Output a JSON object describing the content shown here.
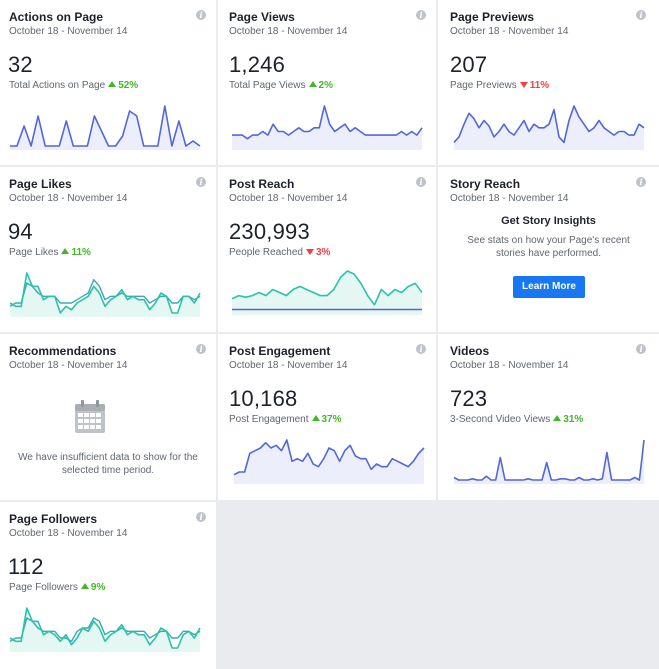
{
  "date_range": "October 18 - November 14",
  "info_glyph": "i",
  "cards": [
    {
      "title": "Actions on Page",
      "value": "32",
      "metric": "Total Actions on Page",
      "change": "52%",
      "dir": "up",
      "spark": [
        0,
        0,
        8,
        0,
        12,
        0,
        0,
        0,
        10,
        0,
        0,
        0,
        12,
        6,
        0,
        0,
        4,
        14,
        12,
        0,
        0,
        0,
        16,
        0,
        10,
        0,
        2,
        0
      ]
    },
    {
      "title": "Page Views",
      "value": "1,246",
      "metric": "Total Page Views",
      "change": "2%",
      "dir": "up",
      "spark": [
        3,
        3,
        3,
        2,
        3,
        3,
        4,
        3,
        6,
        4,
        4,
        3,
        4,
        5,
        4,
        4,
        5,
        5,
        11,
        6,
        4,
        5,
        6,
        4,
        5,
        4,
        3,
        3,
        3,
        3,
        3,
        3,
        3,
        4,
        3,
        4,
        3,
        5
      ]
    },
    {
      "title": "Page Previews",
      "value": "207",
      "metric": "Page Previews",
      "change": "11%",
      "dir": "down",
      "spark": [
        2,
        5,
        12,
        18,
        15,
        10,
        14,
        11,
        5,
        8,
        12,
        8,
        6,
        10,
        14,
        8,
        12,
        10,
        10,
        12,
        20,
        5,
        2,
        14,
        22,
        16,
        12,
        8,
        10,
        14,
        10,
        8,
        6,
        8,
        8,
        6,
        6,
        12,
        10
      ]
    },
    {
      "title": "Page Likes",
      "value": "94",
      "metric": "Page Likes",
      "change": "11%",
      "dir": "up",
      "spark": [
        3,
        2,
        2,
        12,
        8,
        8,
        4,
        5,
        5,
        0,
        2,
        1,
        3,
        4,
        5,
        8,
        6,
        2,
        4,
        5,
        7,
        4,
        5,
        4,
        4,
        1,
        3,
        6,
        5,
        0,
        0,
        5,
        5,
        3,
        6
      ],
      "spark2": [
        2,
        3,
        3,
        9,
        8,
        6,
        5,
        5,
        5,
        3,
        3,
        3,
        4,
        5,
        6,
        10,
        8,
        4,
        5,
        5,
        6,
        5,
        5,
        5,
        5,
        3,
        4,
        5,
        5,
        3,
        3,
        5,
        5,
        4,
        5
      ]
    },
    {
      "title": "Post Reach",
      "value": "230,993",
      "metric": "People Reached",
      "change": "3%",
      "dir": "down",
      "spark": [
        8,
        10,
        9,
        10,
        12,
        10,
        14,
        12,
        10,
        14,
        16,
        14,
        12,
        10,
        10,
        14,
        22,
        26,
        24,
        18,
        10,
        4,
        14,
        10,
        14,
        12,
        16,
        18,
        12
      ],
      "spark_base": [
        1,
        1,
        1,
        1,
        1,
        1,
        1,
        1,
        1,
        1,
        1,
        1,
        1,
        1,
        1,
        1,
        1,
        1,
        1,
        1,
        1,
        1,
        1,
        1,
        1,
        1,
        1,
        1,
        1
      ]
    },
    {
      "title": "Story Reach",
      "story": true,
      "head": "Get Story Insights",
      "text": "See stats on how your Page's recent stories have performed.",
      "button": "Learn More"
    },
    {
      "title": "Recommendations",
      "rec": true,
      "text": "We have insufficient data to show for the selected time period."
    },
    {
      "title": "Post Engagement",
      "value": "10,168",
      "metric": "Post Engagement",
      "change": "37%",
      "dir": "up",
      "spark": [
        2,
        3,
        3,
        10,
        11,
        12,
        14,
        12,
        13,
        11,
        15,
        7,
        8,
        7,
        10,
        6,
        5,
        8,
        12,
        11,
        7,
        11,
        13,
        9,
        8,
        8,
        4,
        6,
        5,
        5,
        8,
        7,
        6,
        5,
        7,
        10,
        12
      ]
    },
    {
      "title": "Videos",
      "value": "723",
      "metric": "3-Second Video Views",
      "change": "31%",
      "dir": "up",
      "spark": [
        2,
        0,
        0,
        0,
        1,
        0,
        0,
        3,
        0,
        0,
        18,
        0,
        0,
        0,
        0,
        0,
        1,
        0,
        0,
        0,
        14,
        0,
        0,
        1,
        1,
        0,
        0,
        2,
        0,
        0,
        1,
        0,
        1,
        22,
        0,
        0,
        0,
        0,
        0,
        2,
        0,
        32
      ]
    },
    {
      "title": "Page Followers",
      "value": "112",
      "metric": "Page Followers",
      "change": "9%",
      "dir": "up",
      "spark": [
        3,
        2,
        2,
        12,
        8,
        8,
        4,
        5,
        4,
        2,
        4,
        1,
        3,
        6,
        5,
        8,
        6,
        2,
        4,
        5,
        7,
        4,
        5,
        4,
        4,
        1,
        3,
        6,
        5,
        0,
        0,
        4,
        5,
        3,
        6
      ],
      "spark2": [
        2,
        3,
        3,
        9,
        8,
        6,
        5,
        5,
        5,
        3,
        3,
        2,
        5,
        6,
        6,
        9,
        8,
        4,
        5,
        5,
        6,
        5,
        5,
        5,
        5,
        3,
        4,
        5,
        5,
        3,
        3,
        5,
        5,
        4,
        5
      ]
    }
  ],
  "colors": {
    "line": "#5267d9",
    "fill": "#eceffb",
    "teal": "#2bc3a7",
    "tealfill": "#e4f7f3",
    "teal2": "#3aa8b8"
  }
}
